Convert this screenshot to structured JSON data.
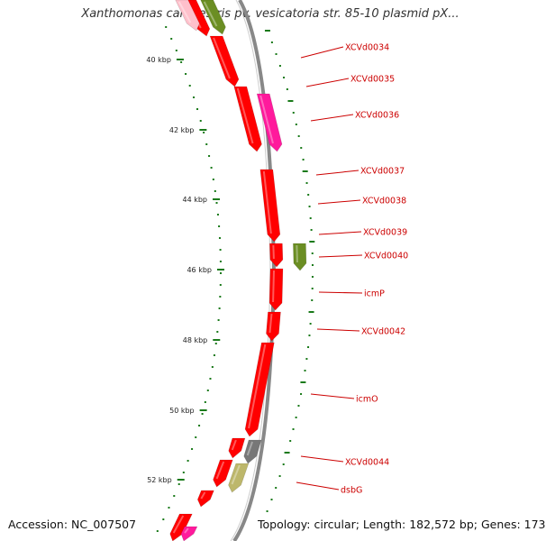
{
  "title": "Xanthomonas campestris pv. vesicatoria str. 85-10 plasmid pX...",
  "accession_label": "Accession: NC_007507",
  "summary_label": "Topology: circular; Length: 182,572 bp; Genes: 173",
  "colors": {
    "gene_red": "#ff0000",
    "gene_magenta": "#ff1a9c",
    "gene_olive": "#6b8e23",
    "gene_gray": "#777777",
    "gene_khaki": "#bdb76b",
    "gene_pink": "#ffc0cb",
    "label_red": "#cc0000",
    "tick_green": "#1a7a1a",
    "backbone": "#888888"
  },
  "scale_labels": [
    "40 kbp",
    "42 kbp",
    "44 kbp",
    "46 kbp",
    "48 kbp",
    "50 kbp",
    "52 kbp"
  ],
  "gene_labels": [
    "XCVd0034",
    "XCVd0035",
    "XCVd0036",
    "XCVd0037",
    "XCVd0038",
    "XCVd0039",
    "XCVd0040",
    "icmP",
    "XCVd0042",
    "icmO",
    "XCVd0044",
    "dsbG"
  ]
}
